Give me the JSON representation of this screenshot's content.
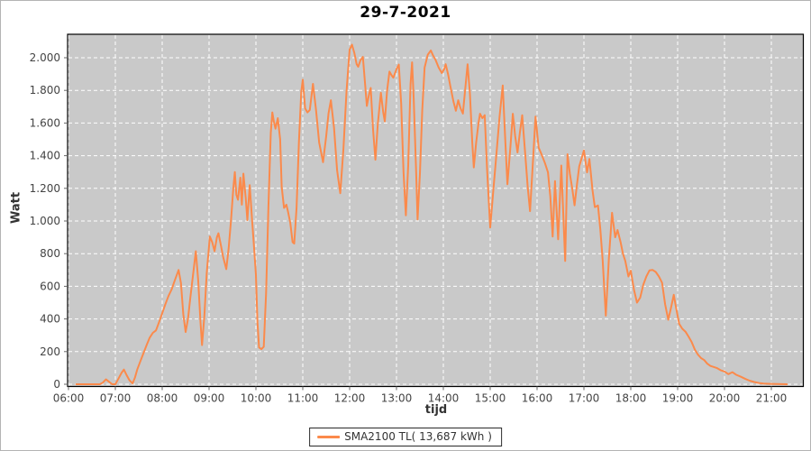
{
  "title": "29-7-2021",
  "colors": {
    "line": "#fb8a4b",
    "plot_background": "#c9c9c9",
    "grid": "#ffffff",
    "plot_border": "#000000",
    "tick_text": "#444444",
    "axis_title_text": "#333333"
  },
  "legend": {
    "label": "SMA2100 TL( 13,687 kWh )"
  },
  "chart_data": {
    "type": "line",
    "title": "29-7-2021",
    "xlabel": "tijd",
    "ylabel": "Watt",
    "grid": true,
    "legend_position": "bottom-center",
    "xlim_minutes": [
      359,
      1302
    ],
    "ylim": [
      0,
      2140
    ],
    "y_ticks": [
      0,
      200,
      400,
      600,
      800,
      1000,
      1200,
      1400,
      1600,
      1800,
      2000
    ],
    "y_tick_labels": [
      "0",
      "200",
      "400",
      "600",
      "800",
      "1.000",
      "1.200",
      "1.400",
      "1.600",
      "1.800",
      "2.000"
    ],
    "x_tick_hours": [
      6,
      7,
      8,
      9,
      10,
      11,
      12,
      13,
      14,
      15,
      16,
      17,
      18,
      19,
      20,
      21
    ],
    "x_tick_labels": [
      "06:00",
      "07:00",
      "08:00",
      "09:00",
      "10:00",
      "11:00",
      "12:00",
      "13:00",
      "14:00",
      "15:00",
      "16:00",
      "17:00",
      "18:00",
      "19:00",
      "20:00",
      "21:00"
    ],
    "series": [
      {
        "name": "SMA2100 TL( 13,687 kWh )",
        "color": "#fb8a4b",
        "points": [
          [
            "06:10",
            0
          ],
          [
            "06:16",
            0
          ],
          [
            "06:22",
            0
          ],
          [
            "06:28",
            0
          ],
          [
            "06:34",
            0
          ],
          [
            "06:40",
            0
          ],
          [
            "06:44",
            10
          ],
          [
            "06:48",
            30
          ],
          [
            "06:52",
            15
          ],
          [
            "06:56",
            0
          ],
          [
            "07:00",
            0
          ],
          [
            "07:04",
            35
          ],
          [
            "07:08",
            70
          ],
          [
            "07:11",
            90
          ],
          [
            "07:14",
            60
          ],
          [
            "07:18",
            25
          ],
          [
            "07:22",
            5
          ],
          [
            "07:25",
            40
          ],
          [
            "07:28",
            90
          ],
          [
            "07:32",
            140
          ],
          [
            "07:36",
            190
          ],
          [
            "07:40",
            240
          ],
          [
            "07:44",
            285
          ],
          [
            "07:48",
            315
          ],
          [
            "07:52",
            330
          ],
          [
            "07:56",
            380
          ],
          [
            "08:00",
            435
          ],
          [
            "08:04",
            490
          ],
          [
            "08:08",
            540
          ],
          [
            "08:12",
            580
          ],
          [
            "08:16",
            635
          ],
          [
            "08:21",
            700
          ],
          [
            "08:24",
            620
          ],
          [
            "08:27",
            430
          ],
          [
            "08:30",
            320
          ],
          [
            "08:33",
            400
          ],
          [
            "08:36",
            530
          ],
          [
            "08:39",
            650
          ],
          [
            "08:43",
            815
          ],
          [
            "08:46",
            640
          ],
          [
            "08:49",
            380
          ],
          [
            "08:51",
            240
          ],
          [
            "08:54",
            420
          ],
          [
            "08:57",
            680
          ],
          [
            "09:01",
            905
          ],
          [
            "09:04",
            870
          ],
          [
            "09:07",
            815
          ],
          [
            "09:10",
            900
          ],
          [
            "09:12",
            925
          ],
          [
            "09:15",
            855
          ],
          [
            "09:18",
            780
          ],
          [
            "09:22",
            705
          ],
          [
            "09:25",
            830
          ],
          [
            "09:28",
            1000
          ],
          [
            "09:31",
            1200
          ],
          [
            "09:33",
            1300
          ],
          [
            "09:35",
            1160
          ],
          [
            "09:37",
            1130
          ],
          [
            "09:40",
            1265
          ],
          [
            "09:42",
            1100
          ],
          [
            "09:44",
            1290
          ],
          [
            "09:47",
            1140
          ],
          [
            "09:49",
            1005
          ],
          [
            "09:52",
            1220
          ],
          [
            "09:55",
            1010
          ],
          [
            "09:58",
            810
          ],
          [
            "10:00",
            670
          ],
          [
            "10:02",
            380
          ],
          [
            "10:04",
            225
          ],
          [
            "10:07",
            215
          ],
          [
            "10:10",
            230
          ],
          [
            "10:13",
            560
          ],
          [
            "10:16",
            1090
          ],
          [
            "10:19",
            1540
          ],
          [
            "10:21",
            1665
          ],
          [
            "10:23",
            1610
          ],
          [
            "10:25",
            1565
          ],
          [
            "10:28",
            1630
          ],
          [
            "10:31",
            1500
          ],
          [
            "10:33",
            1210
          ],
          [
            "10:36",
            1080
          ],
          [
            "10:39",
            1100
          ],
          [
            "10:41",
            1060
          ],
          [
            "10:44",
            990
          ],
          [
            "10:47",
            870
          ],
          [
            "10:49",
            862
          ],
          [
            "10:52",
            1080
          ],
          [
            "10:55",
            1480
          ],
          [
            "10:58",
            1790
          ],
          [
            "11:00",
            1865
          ],
          [
            "11:03",
            1690
          ],
          [
            "11:06",
            1665
          ],
          [
            "11:09",
            1680
          ],
          [
            "11:13",
            1840
          ],
          [
            "11:17",
            1680
          ],
          [
            "11:21",
            1480
          ],
          [
            "11:26",
            1360
          ],
          [
            "11:30",
            1520
          ],
          [
            "11:33",
            1660
          ],
          [
            "11:36",
            1740
          ],
          [
            "11:40",
            1570
          ],
          [
            "11:44",
            1310
          ],
          [
            "11:48",
            1170
          ],
          [
            "11:52",
            1440
          ],
          [
            "11:56",
            1790
          ],
          [
            "12:00",
            2050
          ],
          [
            "12:03",
            2080
          ],
          [
            "12:06",
            2030
          ],
          [
            "12:09",
            1960
          ],
          [
            "12:11",
            1945
          ],
          [
            "12:14",
            1985
          ],
          [
            "12:17",
            2005
          ],
          [
            "12:20",
            1830
          ],
          [
            "12:22",
            1705
          ],
          [
            "12:25",
            1780
          ],
          [
            "12:27",
            1815
          ],
          [
            "12:30",
            1560
          ],
          [
            "12:33",
            1375
          ],
          [
            "12:36",
            1590
          ],
          [
            "12:40",
            1785
          ],
          [
            "12:43",
            1665
          ],
          [
            "12:45",
            1610
          ],
          [
            "12:48",
            1800
          ],
          [
            "12:51",
            1915
          ],
          [
            "12:54",
            1890
          ],
          [
            "12:56",
            1878
          ],
          [
            "13:00",
            1930
          ],
          [
            "13:03",
            1958
          ],
          [
            "13:06",
            1720
          ],
          [
            "13:09",
            1300
          ],
          [
            "13:12",
            1035
          ],
          [
            "13:15",
            1340
          ],
          [
            "13:18",
            1840
          ],
          [
            "13:20",
            1972
          ],
          [
            "13:22",
            1750
          ],
          [
            "13:25",
            1320
          ],
          [
            "13:27",
            1010
          ],
          [
            "13:30",
            1290
          ],
          [
            "13:33",
            1680
          ],
          [
            "13:36",
            1940
          ],
          [
            "13:40",
            2018
          ],
          [
            "13:44",
            2045
          ],
          [
            "13:47",
            2012
          ],
          [
            "13:50",
            1988
          ],
          [
            "13:54",
            1940
          ],
          [
            "13:58",
            1906
          ],
          [
            "14:01",
            1930
          ],
          [
            "14:03",
            1960
          ],
          [
            "14:06",
            1900
          ],
          [
            "14:09",
            1825
          ],
          [
            "14:13",
            1730
          ],
          [
            "14:16",
            1675
          ],
          [
            "14:19",
            1740
          ],
          [
            "14:22",
            1690
          ],
          [
            "14:25",
            1658
          ],
          [
            "14:28",
            1810
          ],
          [
            "14:31",
            1960
          ],
          [
            "14:34",
            1780
          ],
          [
            "14:37",
            1480
          ],
          [
            "14:39",
            1328
          ],
          [
            "14:42",
            1480
          ],
          [
            "14:45",
            1600
          ],
          [
            "14:47",
            1657
          ],
          [
            "14:50",
            1630
          ],
          [
            "14:53",
            1648
          ],
          [
            "14:56",
            1320
          ],
          [
            "15:00",
            960
          ],
          [
            "15:04",
            1190
          ],
          [
            "15:08",
            1410
          ],
          [
            "15:12",
            1640
          ],
          [
            "15:16",
            1830
          ],
          [
            "15:19",
            1520
          ],
          [
            "15:22",
            1225
          ],
          [
            "15:26",
            1460
          ],
          [
            "15:29",
            1657
          ],
          [
            "15:32",
            1520
          ],
          [
            "15:35",
            1420
          ],
          [
            "15:38",
            1540
          ],
          [
            "15:41",
            1648
          ],
          [
            "15:45",
            1400
          ],
          [
            "15:48",
            1210
          ],
          [
            "15:51",
            1060
          ],
          [
            "15:55",
            1390
          ],
          [
            "15:58",
            1640
          ],
          [
            "16:02",
            1450
          ],
          [
            "16:06",
            1405
          ],
          [
            "16:10",
            1355
          ],
          [
            "16:14",
            1298
          ],
          [
            "16:17",
            1150
          ],
          [
            "16:20",
            905
          ],
          [
            "16:23",
            1245
          ],
          [
            "16:27",
            888
          ],
          [
            "16:31",
            1340
          ],
          [
            "16:36",
            755
          ],
          [
            "16:39",
            1409
          ],
          [
            "16:42",
            1290
          ],
          [
            "16:45",
            1200
          ],
          [
            "16:48",
            1096
          ],
          [
            "16:51",
            1220
          ],
          [
            "16:54",
            1335
          ],
          [
            "16:58",
            1400
          ],
          [
            "17:00",
            1432
          ],
          [
            "17:04",
            1298
          ],
          [
            "17:07",
            1380
          ],
          [
            "17:11",
            1190
          ],
          [
            "17:14",
            1085
          ],
          [
            "17:18",
            1095
          ],
          [
            "17:21",
            950
          ],
          [
            "17:24",
            760
          ],
          [
            "17:28",
            420
          ],
          [
            "17:32",
            770
          ],
          [
            "17:36",
            1050
          ],
          [
            "17:40",
            900
          ],
          [
            "17:43",
            945
          ],
          [
            "17:47",
            870
          ],
          [
            "17:50",
            800
          ],
          [
            "17:53",
            755
          ],
          [
            "17:57",
            660
          ],
          [
            "18:00",
            695
          ],
          [
            "18:04",
            580
          ],
          [
            "18:08",
            500
          ],
          [
            "18:12",
            530
          ],
          [
            "18:16",
            610
          ],
          [
            "18:20",
            660
          ],
          [
            "18:24",
            698
          ],
          [
            "18:28",
            700
          ],
          [
            "18:32",
            688
          ],
          [
            "18:36",
            660
          ],
          [
            "18:40",
            622
          ],
          [
            "18:44",
            490
          ],
          [
            "18:48",
            395
          ],
          [
            "18:52",
            480
          ],
          [
            "18:55",
            548
          ],
          [
            "18:58",
            468
          ],
          [
            "19:02",
            370
          ],
          [
            "19:06",
            340
          ],
          [
            "19:10",
            322
          ],
          [
            "19:14",
            292
          ],
          [
            "19:18",
            258
          ],
          [
            "19:22",
            212
          ],
          [
            "19:26",
            182
          ],
          [
            "19:30",
            160
          ],
          [
            "19:34",
            148
          ],
          [
            "19:38",
            126
          ],
          [
            "19:42",
            112
          ],
          [
            "19:46",
            106
          ],
          [
            "19:50",
            100
          ],
          [
            "19:55",
            86
          ],
          [
            "20:00",
            78
          ],
          [
            "20:05",
            62
          ],
          [
            "20:10",
            74
          ],
          [
            "20:15",
            58
          ],
          [
            "20:21",
            46
          ],
          [
            "20:27",
            32
          ],
          [
            "20:32",
            22
          ],
          [
            "20:38",
            14
          ],
          [
            "20:44",
            8
          ],
          [
            "20:50",
            4
          ],
          [
            "21:00",
            2
          ],
          [
            "21:08",
            1
          ],
          [
            "21:20",
            0
          ]
        ]
      }
    ]
  }
}
